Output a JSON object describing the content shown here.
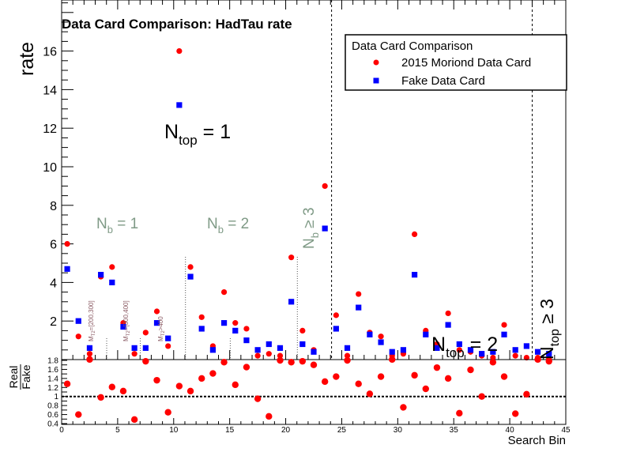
{
  "chart_data": [
    {
      "type": "scatter",
      "title": "Data Card Comparison: HadTau rate",
      "xlabel": "",
      "ylabel": "rate",
      "xlim": [
        0,
        45
      ],
      "ylim": [
        0,
        17
      ],
      "y_ticks": [
        2,
        4,
        6,
        8,
        10,
        12,
        14,
        16
      ],
      "legend": {
        "title": "Data Card Comparison",
        "placement": "top-right"
      },
      "series": [
        {
          "name": "2015 Moriond Data Card",
          "color": "#ff0000",
          "marker": "circle",
          "x": [
            0.5,
            1.5,
            2.5,
            3.5,
            4.5,
            5.5,
            6.5,
            7.5,
            8.5,
            9.5,
            10.5,
            11.5,
            12.5,
            13.5,
            14.5,
            15.5,
            16.5,
            17.5,
            18.5,
            19.5,
            20.5,
            21.5,
            22.5,
            23.5,
            24.5,
            25.5,
            26.5,
            27.5,
            28.5,
            29.5,
            30.5,
            31.5,
            32.5,
            33.5,
            34.5,
            35.5,
            36.5,
            37.5,
            38.5,
            39.5,
            40.5,
            41.5,
            42.5,
            43.5
          ],
          "values": [
            6.0,
            1.2,
            0.3,
            4.3,
            4.8,
            1.9,
            0.3,
            1.4,
            2.5,
            0.7,
            16.0,
            4.8,
            2.2,
            0.7,
            3.5,
            1.9,
            1.6,
            0.2,
            0.3,
            0.2,
            5.3,
            1.5,
            0.5,
            9.0,
            2.3,
            0.2,
            3.4,
            1.4,
            1.2,
            0.2,
            0.3,
            6.5,
            1.5,
            0.8,
            2.4,
            0.5,
            0.4,
            0.2,
            0.1,
            1.8,
            0.2,
            0.1,
            0.1,
            0.05
          ]
        },
        {
          "name": "Fake Data Card",
          "color": "#0000ff",
          "marker": "square",
          "x": [
            0.5,
            1.5,
            2.5,
            3.5,
            4.5,
            5.5,
            6.5,
            7.5,
            8.5,
            9.5,
            10.5,
            11.5,
            12.5,
            13.5,
            14.5,
            15.5,
            16.5,
            17.5,
            18.5,
            19.5,
            20.5,
            21.5,
            22.5,
            23.5,
            24.5,
            25.5,
            26.5,
            27.5,
            28.5,
            29.5,
            30.5,
            31.5,
            32.5,
            33.5,
            34.5,
            35.5,
            36.5,
            37.5,
            38.5,
            39.5,
            40.5,
            41.5,
            42.5,
            43.5
          ],
          "values": [
            4.7,
            2.0,
            0.6,
            4.4,
            4.0,
            1.7,
            0.6,
            0.6,
            1.9,
            1.1,
            13.2,
            4.3,
            1.6,
            0.5,
            1.9,
            1.5,
            1.0,
            0.5,
            0.8,
            0.6,
            3.0,
            0.8,
            0.4,
            6.8,
            1.6,
            0.6,
            2.7,
            1.3,
            0.9,
            0.4,
            0.5,
            4.4,
            1.3,
            0.6,
            1.8,
            0.8,
            0.5,
            0.3,
            0.4,
            1.3,
            0.5,
            0.7,
            0.4,
            0.3
          ]
        }
      ],
      "annotations": {
        "ntop1": "N",
        "ntop1_sub": "top",
        "ntop1_rest": " = 1",
        "ntop2": "N",
        "ntop2_sub": "top",
        "ntop2_rest": " = 2",
        "ntop3": "N",
        "ntop3_sub": "top",
        "ntop3_rest": " ≥ 3",
        "nb1": "N",
        "nb1_sub": "b",
        "nb1_rest": " = 1",
        "nb2": "N",
        "nb2_sub": "b",
        "nb2_rest": " = 2",
        "nb3": "N",
        "nb3_sub": "b",
        "nb3_rest": " ≥ 3",
        "mt2_a": "M",
        "mt2_a_sub": "T2",
        "mt2_a_rest": "=[200,300]",
        "mt2_b": "M",
        "mt2_b_sub": "T2",
        "mt2_b_rest": "=[300,400]",
        "mt2_c": "M",
        "mt2_c_sub": "T2",
        "mt2_c_rest": ">400"
      }
    },
    {
      "type": "scatter",
      "title": "",
      "xlabel": "Search Bin",
      "ylabel_num": "Real",
      "ylabel_den": "Fake",
      "xlim": [
        0,
        45
      ],
      "ylim": [
        0.4,
        1.8
      ],
      "x_ticks": [
        0,
        5,
        10,
        15,
        20,
        25,
        30,
        35,
        40,
        45
      ],
      "y_ticks": [
        "0.4",
        "0.6",
        "0.8",
        "1",
        "1.2",
        "1.4",
        "1.6",
        "1.8"
      ],
      "reference_line": 1,
      "series": [
        {
          "name": "",
          "color": "#ff0000",
          "marker": "circle",
          "x": [
            0.5,
            1.5,
            2.5,
            3.5,
            4.5,
            5.5,
            6.5,
            7.5,
            8.5,
            9.5,
            10.5,
            11.5,
            12.5,
            13.5,
            14.5,
            15.5,
            16.5,
            17.5,
            18.5,
            19.5,
            20.5,
            21.5,
            22.5,
            23.5,
            24.5,
            25.5,
            26.5,
            27.5,
            28.5,
            29.5,
            30.5,
            31.5,
            32.5,
            33.5,
            34.5,
            35.5,
            36.5,
            37.5,
            38.5,
            39.5,
            40.5,
            41.5,
            42.5,
            43.5
          ],
          "values": [
            1.28,
            0.6,
            1.82,
            0.98,
            1.21,
            1.12,
            0.49,
            1.78,
            1.36,
            0.65,
            1.23,
            1.12,
            1.4,
            1.51,
            1.76,
            1.26,
            1.65,
            0.95,
            0.56,
            1.8,
            1.76,
            1.78,
            1.7,
            1.33,
            1.44,
            1.8,
            1.28,
            1.06,
            1.44,
            1.82,
            0.76,
            1.47,
            1.17,
            1.64,
            1.4,
            0.63,
            1.59,
            1.0,
            1.76,
            1.44,
            0.62,
            1.05,
            1.82,
            1.78
          ]
        }
      ]
    }
  ]
}
